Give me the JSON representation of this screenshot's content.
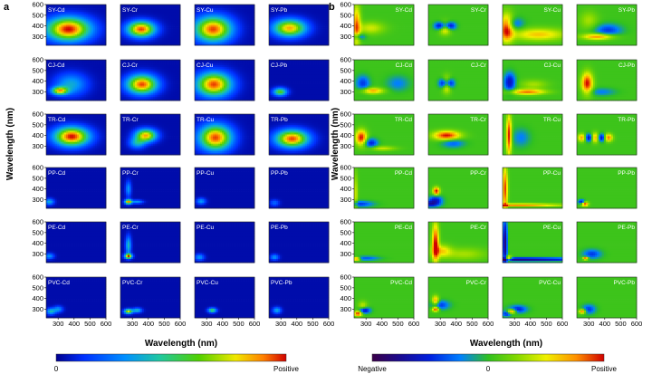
{
  "figure": {
    "panel_a_label": "a",
    "panel_b_label": "b",
    "ylabel": "Wavelength (nm)",
    "xlabel": "Wavelength (nm)",
    "colorbar_a": {
      "min_label": "0",
      "max_label": "Positive"
    },
    "colorbar_b": {
      "min_label": "Negative",
      "mid_label": "0",
      "max_label": "Positive"
    }
  },
  "chart_data": [
    {
      "type": "heatmap",
      "panel": "a",
      "description_kind": "excitation-emission contour maps",
      "rows": [
        "SY",
        "CJ",
        "TR",
        "PP",
        "PE",
        "PVC"
      ],
      "columns": [
        "Cd",
        "Cr",
        "Cu",
        "Pb"
      ],
      "cell_labels": [
        [
          "SY-Cd",
          "SY-Cr",
          "SY-Cu",
          "SY-Pb"
        ],
        [
          "CJ-Cd",
          "CJ-Cr",
          "CJ-Cu",
          "CJ-Pb"
        ],
        [
          "TR-Cd",
          "TR-Cr",
          "TR-Cu",
          "TR-Pb"
        ],
        [
          "PP-Cd",
          "PP-Cr",
          "PP-Cu",
          "PP-Pb"
        ],
        [
          "PE-Cd",
          "PE-Cr",
          "PE-Cu",
          "PE-Pb"
        ],
        [
          "PVC-Cd",
          "PVC-Cr",
          "PVC-Cu",
          "PVC-Pb"
        ]
      ],
      "x_range": [
        225,
        600
      ],
      "y_range": [
        220,
        600
      ],
      "x_ticks": [
        "300",
        "400",
        "500",
        "600"
      ],
      "y_ticks": [
        "300",
        "400",
        "500",
        "600"
      ],
      "peaks": [
        [
          [
            {
              "x": 365,
              "y": 370,
              "a": 1.0,
              "sx": 95,
              "sy": 75
            }
          ],
          [
            {
              "x": 355,
              "y": 370,
              "a": 0.95,
              "sx": 60,
              "sy": 50
            }
          ],
          [
            {
              "x": 340,
              "y": 370,
              "a": 0.95,
              "sx": 80,
              "sy": 80
            }
          ],
          [
            {
              "x": 355,
              "y": 380,
              "a": 0.85,
              "sx": 70,
              "sy": 55
            }
          ]
        ],
        [
          [
            {
              "x": 310,
              "y": 310,
              "a": 0.75,
              "sx": 35,
              "sy": 25
            },
            {
              "x": 380,
              "y": 370,
              "a": 0.35,
              "sx": 70,
              "sy": 70
            }
          ],
          [
            {
              "x": 360,
              "y": 370,
              "a": 0.95,
              "sx": 65,
              "sy": 60
            }
          ],
          [
            {
              "x": 345,
              "y": 370,
              "a": 0.95,
              "sx": 75,
              "sy": 75
            }
          ],
          [
            {
              "x": 295,
              "y": 300,
              "a": 0.6,
              "sx": 30,
              "sy": 25
            }
          ]
        ],
        [
          [
            {
              "x": 385,
              "y": 390,
              "a": 1.0,
              "sx": 75,
              "sy": 60
            }
          ],
          [
            {
              "x": 385,
              "y": 400,
              "a": 0.85,
              "sx": 45,
              "sy": 40
            },
            {
              "x": 330,
              "y": 330,
              "a": 0.35,
              "sx": 35,
              "sy": 35
            }
          ],
          [
            {
              "x": 355,
              "y": 380,
              "a": 0.95,
              "sx": 70,
              "sy": 80
            }
          ],
          [
            {
              "x": 370,
              "y": 370,
              "a": 0.95,
              "sx": 70,
              "sy": 55
            }
          ]
        ],
        [
          [
            {
              "x": 245,
              "y": 280,
              "a": 0.35,
              "sx": 20,
              "sy": 20
            }
          ],
          [
            {
              "x": 275,
              "y": 280,
              "a": 0.85,
              "sx": 15,
              "sy": 15
            },
            {
              "x": 275,
              "y": 400,
              "a": 0.3,
              "sx": 12,
              "sy": 50
            },
            {
              "x": 330,
              "y": 280,
              "a": 0.3,
              "sx": 25,
              "sy": 12
            }
          ],
          [
            {
              "x": 265,
              "y": 285,
              "a": 0.3,
              "sx": 20,
              "sy": 20
            }
          ],
          [
            {
              "x": 260,
              "y": 270,
              "a": 0.2,
              "sx": 20,
              "sy": 20
            }
          ]
        ],
        [
          [
            {
              "x": 245,
              "y": 280,
              "a": 0.3,
              "sx": 20,
              "sy": 18
            }
          ],
          [
            {
              "x": 275,
              "y": 280,
              "a": 0.9,
              "sx": 16,
              "sy": 15
            },
            {
              "x": 275,
              "y": 380,
              "a": 0.4,
              "sx": 12,
              "sy": 60
            }
          ],
          [
            {
              "x": 255,
              "y": 270,
              "a": 0.3,
              "sx": 20,
              "sy": 20
            }
          ],
          [
            {
              "x": 260,
              "y": 270,
              "a": 0.3,
              "sx": 18,
              "sy": 18
            }
          ]
        ],
        [
          [
            {
              "x": 255,
              "y": 280,
              "a": 0.4,
              "sx": 20,
              "sy": 20
            },
            {
              "x": 300,
              "y": 300,
              "a": 0.3,
              "sx": 20,
              "sy": 20
            }
          ],
          [
            {
              "x": 275,
              "y": 280,
              "a": 0.75,
              "sx": 18,
              "sy": 15
            },
            {
              "x": 330,
              "y": 290,
              "a": 0.4,
              "sx": 20,
              "sy": 15
            }
          ],
          [
            {
              "x": 335,
              "y": 290,
              "a": 0.55,
              "sx": 18,
              "sy": 15
            }
          ],
          [
            {
              "x": 275,
              "y": 290,
              "a": 0.35,
              "sx": 18,
              "sy": 20
            }
          ]
        ]
      ]
    },
    {
      "type": "heatmap",
      "panel": "b",
      "description_kind": "difference maps (negative to positive)",
      "rows": [
        "SY",
        "CJ",
        "TR",
        "PP",
        "PE",
        "PVC"
      ],
      "columns": [
        "Cd",
        "Cr",
        "Cu",
        "Pb"
      ],
      "cell_labels": [
        [
          "SY-Cd",
          "SY-Cr",
          "SY-Cu",
          "SY-Pb"
        ],
        [
          "CJ-Cd",
          "CJ-Cr",
          "CJ-Cu",
          "CJ-Pb"
        ],
        [
          "TR-Cd",
          "TR-Cr",
          "TR-Cu",
          "TR-Pb"
        ],
        [
          "PP-Cd",
          "PP-Cr",
          "PP-Cu",
          "PP-Pb"
        ],
        [
          "PE-Cd",
          "PE-Cr",
          "PE-Cu",
          "PE-Pb"
        ],
        [
          "PVC-Cd",
          "PVC-Cr",
          "PVC-Cu",
          "PVC-Pb"
        ]
      ],
      "x_range": [
        225,
        600
      ],
      "y_range": [
        220,
        600
      ],
      "x_ticks": [
        "300",
        "400",
        "500",
        "600"
      ],
      "y_ticks": [
        "300",
        "400",
        "500",
        "600"
      ],
      "peaks": [
        [
          [
            {
              "x": 240,
              "y": 400,
              "a": 0.8,
              "sx": 18,
              "sy": 130
            },
            {
              "x": 330,
              "y": 380,
              "a": 0.4,
              "sx": 60,
              "sy": 40
            },
            {
              "x": 250,
              "y": 300,
              "a": -0.5,
              "sx": 30,
              "sy": 20
            }
          ],
          [
            {
              "x": 300,
              "y": 400,
              "a": -0.8,
              "sx": 25,
              "sy": 25
            },
            {
              "x": 360,
              "y": 400,
              "a": -0.8,
              "sx": 25,
              "sy": 25
            },
            {
              "x": 330,
              "y": 380,
              "a": 0.7,
              "sx": 25,
              "sy": 40
            }
          ],
          [
            {
              "x": 250,
              "y": 380,
              "a": 1.0,
              "sx": 30,
              "sy": 90
            },
            {
              "x": 450,
              "y": 320,
              "a": 0.6,
              "sx": 120,
              "sy": 40
            },
            {
              "x": 300,
              "y": 420,
              "a": -0.4,
              "sx": 40,
              "sy": 40
            }
          ],
          [
            {
              "x": 360,
              "y": 300,
              "a": 0.8,
              "sx": 70,
              "sy": 20
            },
            {
              "x": 420,
              "y": 360,
              "a": -0.5,
              "sx": 60,
              "sy": 40
            },
            {
              "x": 300,
              "y": 450,
              "a": 0.3,
              "sx": 40,
              "sy": 60
            }
          ]
        ],
        [
          [
            {
              "x": 340,
              "y": 310,
              "a": 0.7,
              "sx": 50,
              "sy": 20
            },
            {
              "x": 280,
              "y": 380,
              "a": -0.5,
              "sx": 30,
              "sy": 50
            },
            {
              "x": 500,
              "y": 380,
              "a": -0.3,
              "sx": 50,
              "sy": 50
            }
          ],
          [
            {
              "x": 320,
              "y": 380,
              "a": -0.8,
              "sx": 20,
              "sy": 30
            },
            {
              "x": 360,
              "y": 380,
              "a": -0.8,
              "sx": 20,
              "sy": 30
            },
            {
              "x": 340,
              "y": 370,
              "a": 0.8,
              "sx": 20,
              "sy": 50
            }
          ],
          [
            {
              "x": 270,
              "y": 390,
              "a": -0.7,
              "sx": 25,
              "sy": 60
            },
            {
              "x": 380,
              "y": 300,
              "a": 0.8,
              "sx": 80,
              "sy": 18
            },
            {
              "x": 420,
              "y": 370,
              "a": 0.3,
              "sx": 60,
              "sy": 30
            }
          ],
          [
            {
              "x": 290,
              "y": 380,
              "a": 1.0,
              "sx": 25,
              "sy": 70
            },
            {
              "x": 380,
              "y": 300,
              "a": -0.3,
              "sx": 60,
              "sy": 25
            }
          ]
        ],
        [
          [
            {
              "x": 270,
              "y": 380,
              "a": 1.0,
              "sx": 25,
              "sy": 50
            },
            {
              "x": 330,
              "y": 330,
              "a": -0.6,
              "sx": 30,
              "sy": 30
            },
            {
              "x": 400,
              "y": 280,
              "a": 0.4,
              "sx": 60,
              "sy": 15
            }
          ],
          [
            {
              "x": 340,
              "y": 400,
              "a": 1.0,
              "sx": 60,
              "sy": 30
            },
            {
              "x": 380,
              "y": 330,
              "a": -0.4,
              "sx": 50,
              "sy": 30
            }
          ],
          [
            {
              "x": 265,
              "y": 400,
              "a": 1.0,
              "sx": 12,
              "sy": 130
            },
            {
              "x": 340,
              "y": 380,
              "a": -0.3,
              "sx": 40,
              "sy": 60
            }
          ],
          [
            {
              "x": 300,
              "y": 380,
              "a": -0.9,
              "sx": 20,
              "sy": 25
            },
            {
              "x": 380,
              "y": 380,
              "a": -0.9,
              "sx": 20,
              "sy": 25
            },
            {
              "x": 340,
              "y": 380,
              "a": 0.9,
              "sx": 20,
              "sy": 30
            },
            {
              "x": 420,
              "y": 380,
              "a": 0.9,
              "sx": 20,
              "sy": 25
            },
            {
              "x": 260,
              "y": 380,
              "a": 0.8,
              "sx": 20,
              "sy": 25
            }
          ]
        ],
        [
          [
            {
              "x": 235,
              "y": 350,
              "a": 0.4,
              "sx": 10,
              "sy": 140
            },
            {
              "x": 260,
              "y": 260,
              "a": -0.5,
              "sx": 60,
              "sy": 20
            }
          ],
          [
            {
              "x": 275,
              "y": 380,
              "a": 1.0,
              "sx": 15,
              "sy": 25
            },
            {
              "x": 270,
              "y": 300,
              "a": -0.6,
              "sx": 30,
              "sy": 25
            },
            {
              "x": 240,
              "y": 260,
              "a": -0.7,
              "sx": 40,
              "sy": 20
            }
          ],
          [
            {
              "x": 240,
              "y": 400,
              "a": 0.9,
              "sx": 12,
              "sy": 150
            },
            {
              "x": 320,
              "y": 250,
              "a": 0.8,
              "sx": 200,
              "sy": 10
            }
          ],
          [
            {
              "x": 275,
              "y": 260,
              "a": 1.0,
              "sx": 15,
              "sy": 15
            },
            {
              "x": 255,
              "y": 280,
              "a": -0.7,
              "sx": 15,
              "sy": 15
            }
          ]
        ],
        [
          [
            {
              "x": 240,
              "y": 255,
              "a": 1.0,
              "sx": 15,
              "sy": 12
            },
            {
              "x": 300,
              "y": 260,
              "a": -0.4,
              "sx": 60,
              "sy": 15
            }
          ],
          [
            {
              "x": 270,
              "y": 400,
              "a": 1.0,
              "sx": 15,
              "sy": 130
            },
            {
              "x": 310,
              "y": 330,
              "a": 0.5,
              "sx": 40,
              "sy": 40
            },
            {
              "x": 450,
              "y": 300,
              "a": 0.3,
              "sx": 100,
              "sy": 40
            }
          ],
          [
            {
              "x": 240,
              "y": 400,
              "a": -0.9,
              "sx": 10,
              "sy": 160
            },
            {
              "x": 300,
              "y": 250,
              "a": -0.9,
              "sx": 300,
              "sy": 12
            },
            {
              "x": 260,
              "y": 260,
              "a": 1.0,
              "sx": 15,
              "sy": 15
            }
          ],
          [
            {
              "x": 280,
              "y": 260,
              "a": 1.0,
              "sx": 12,
              "sy": 10
            },
            {
              "x": 320,
              "y": 300,
              "a": -0.5,
              "sx": 40,
              "sy": 30
            }
          ]
        ],
        [
          [
            {
              "x": 250,
              "y": 260,
              "a": 1.0,
              "sx": 18,
              "sy": 18
            },
            {
              "x": 290,
              "y": 290,
              "a": -0.8,
              "sx": 25,
              "sy": 20
            },
            {
              "x": 280,
              "y": 330,
              "a": 0.4,
              "sx": 20,
              "sy": 30
            }
          ],
          [
            {
              "x": 270,
              "y": 300,
              "a": 1.0,
              "sx": 15,
              "sy": 15
            },
            {
              "x": 270,
              "y": 380,
              "a": 0.8,
              "sx": 15,
              "sy": 30
            },
            {
              "x": 300,
              "y": 340,
              "a": -0.5,
              "sx": 40,
              "sy": 30
            }
          ],
          [
            {
              "x": 280,
              "y": 280,
              "a": 1.0,
              "sx": 20,
              "sy": 15
            },
            {
              "x": 320,
              "y": 300,
              "a": -0.6,
              "sx": 40,
              "sy": 25
            },
            {
              "x": 250,
              "y": 260,
              "a": -0.6,
              "sx": 20,
              "sy": 20
            }
          ],
          [
            {
              "x": 260,
              "y": 280,
              "a": 0.9,
              "sx": 15,
              "sy": 15
            },
            {
              "x": 300,
              "y": 300,
              "a": -0.5,
              "sx": 30,
              "sy": 30
            }
          ]
        ]
      ]
    }
  ]
}
